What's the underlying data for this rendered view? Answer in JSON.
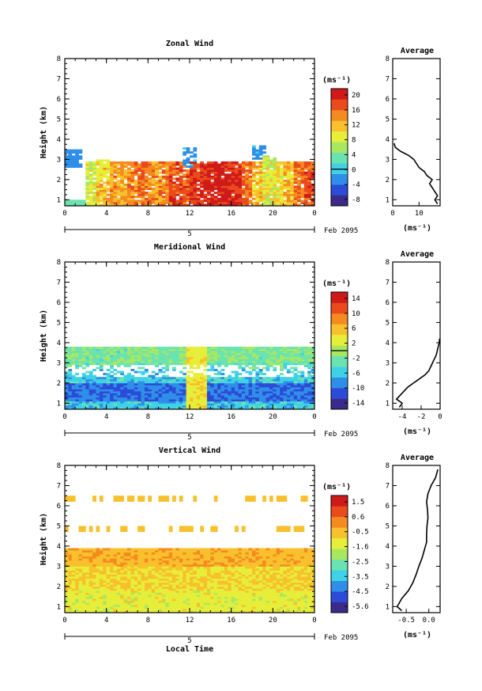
{
  "chart_data": [
    {
      "type": "heatmap",
      "title": "Zonal Wind",
      "ylabel": "Height (km)",
      "x_ticks": [
        "0",
        "4",
        "8",
        "12",
        "16",
        "20",
        "0"
      ],
      "y_ticks": [
        "1",
        "2",
        "3",
        "4",
        "5",
        "6",
        "7",
        "8"
      ],
      "xlim": [
        0,
        24
      ],
      "ylim": [
        0.7,
        8
      ],
      "date_bar_label": "5",
      "date_label": "Feb 2095",
      "colorbar": {
        "unit": "(ms⁻¹)",
        "ticks": [
          "20",
          "16",
          "12",
          "8",
          "4",
          "0",
          "-4",
          "-8"
        ],
        "range": [
          -10,
          22
        ],
        "zero_line": 0
      },
      "data_top_km": 3.7,
      "values_by_hour": [
        2,
        4,
        8,
        12,
        14,
        13,
        15,
        16,
        14,
        15,
        18,
        17,
        19,
        20,
        21,
        20,
        19,
        16,
        12,
        9,
        10,
        12,
        16,
        18
      ],
      "sparse_patches": [
        {
          "x": 0,
          "y0": 2.7,
          "y1": 3.5,
          "value": -4
        },
        {
          "x": 11.8,
          "y0": 2.6,
          "y1": 3.6,
          "value": -3
        },
        {
          "x": 18.6,
          "y0": 3.0,
          "y1": 3.7,
          "value": -3
        },
        {
          "x": 19.5,
          "y0": 2.4,
          "y1": 3.2,
          "value": 6
        },
        {
          "x": 3.5,
          "y0": 2.0,
          "y1": 3.0,
          "value": 8
        }
      ],
      "profile": {
        "title": "Average",
        "xlabel": "(ms⁻¹)",
        "x_ticks": [
          "0",
          "10"
        ],
        "xlim": [
          0,
          18
        ],
        "heights": [
          0.8,
          1.0,
          1.2,
          1.4,
          1.6,
          1.8,
          2.0,
          2.2,
          2.4,
          2.6,
          2.8,
          3.0,
          3.2,
          3.4,
          3.6,
          3.8
        ],
        "values": [
          17,
          16,
          17,
          16,
          15,
          14,
          15,
          13,
          12,
          10,
          9,
          8,
          6,
          3,
          1,
          0.5
        ]
      }
    },
    {
      "type": "heatmap",
      "title": "Meridional Wind",
      "ylabel": "Height (km)",
      "x_ticks": [
        "0",
        "4",
        "8",
        "12",
        "16",
        "20",
        "0"
      ],
      "y_ticks": [
        "1",
        "2",
        "3",
        "4",
        "5",
        "6",
        "7",
        "8"
      ],
      "xlim": [
        0,
        24
      ],
      "ylim": [
        0.7,
        8
      ],
      "date_bar_label": "5",
      "date_label": "Feb 2095",
      "colorbar": {
        "unit": "(ms⁻¹)",
        "ticks": [
          "14",
          "10",
          "6",
          "2",
          "-2",
          "-6",
          "-10",
          "-14"
        ],
        "range": [
          -16,
          16
        ],
        "zero_line": 0
      },
      "data_top_km": 3.8,
      "values_by_height": [
        {
          "y0": 0.7,
          "y1": 1.0,
          "value": -6
        },
        {
          "y0": 1.0,
          "y1": 2.0,
          "value": -10
        },
        {
          "y0": 2.0,
          "y1": 2.7,
          "value": -6
        },
        {
          "y0": 2.7,
          "y1": 3.0,
          "value": -3
        },
        {
          "y0": 3.0,
          "y1": 3.8,
          "value": -2
        }
      ],
      "profile": {
        "title": "Average",
        "xlabel": "(ms⁻¹)",
        "x_ticks": [
          "-4",
          "-2",
          "0"
        ],
        "xlim": [
          -5,
          0
        ],
        "heights": [
          0.8,
          1.0,
          1.2,
          1.4,
          1.6,
          1.8,
          2.0,
          2.2,
          2.4,
          2.6,
          2.8,
          3.0,
          3.2,
          3.4,
          3.6,
          3.8,
          4.0,
          4.2
        ],
        "values": [
          -4.3,
          -4.0,
          -4.6,
          -4.2,
          -3.8,
          -3.4,
          -2.8,
          -2.2,
          -1.6,
          -1.2,
          -1.0,
          -0.8,
          -0.6,
          -0.4,
          -0.3,
          -0.2,
          -0.1,
          -0.05
        ]
      }
    },
    {
      "type": "heatmap",
      "title": "Vertical Wind",
      "ylabel": "Height (km)",
      "xlabel": "Local Time",
      "x_ticks": [
        "0",
        "4",
        "8",
        "12",
        "16",
        "20",
        "0"
      ],
      "y_ticks": [
        "1",
        "2",
        "3",
        "4",
        "5",
        "6",
        "7",
        "8"
      ],
      "xlim": [
        0,
        24
      ],
      "ylim": [
        0.7,
        8
      ],
      "date_bar_label": "5",
      "date_label": "Feb 2095",
      "colorbar": {
        "unit": "(ms⁻¹)",
        "ticks": [
          "1.5",
          "0.6",
          "-0.5",
          "-1.6",
          "-2.5",
          "-3.5",
          "-4.5",
          "-5.6"
        ],
        "range": [
          -6,
          2
        ],
        "zero_line": null
      },
      "data_top_km": 3.9,
      "values_by_height": [
        {
          "y0": 0.7,
          "y1": 1.8,
          "value": -1.3
        },
        {
          "y0": 1.8,
          "y1": 3.0,
          "value": -0.9
        },
        {
          "y0": 3.0,
          "y1": 3.9,
          "value": -0.4
        }
      ],
      "sparse_bands": [
        {
          "y0": 4.7,
          "y1": 5.0,
          "value": -0.5
        },
        {
          "y0": 6.2,
          "y1": 6.5,
          "value": -0.6
        }
      ],
      "profile": {
        "title": "Average",
        "xlabel": "(ms⁻¹)",
        "x_ticks": [
          "-0.5",
          "0.0"
        ],
        "xlim": [
          -0.8,
          0.25
        ],
        "heights": [
          0.8,
          1.0,
          1.4,
          1.8,
          2.2,
          2.6,
          3.0,
          3.4,
          3.8,
          4.2,
          4.6,
          5.0,
          5.4,
          5.8,
          6.2,
          6.6,
          7.0,
          7.4,
          7.8
        ],
        "values": [
          -0.6,
          -0.7,
          -0.6,
          -0.45,
          -0.35,
          -0.28,
          -0.22,
          -0.15,
          -0.1,
          -0.05,
          -0.05,
          -0.04,
          -0.02,
          -0.03,
          -0.05,
          -0.02,
          0.05,
          0.15,
          0.2
        ]
      }
    }
  ],
  "colors": {
    "scale": [
      "#3a2a8a",
      "#2c4bd8",
      "#2f8fe8",
      "#3fd2e6",
      "#6be3b0",
      "#a8e860",
      "#e7ee3a",
      "#f8c02c",
      "#f48a20",
      "#ea4a1c",
      "#cf1a1a"
    ]
  }
}
